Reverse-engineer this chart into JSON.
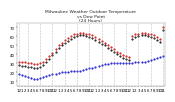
{
  "title": "Milwaukee Weather Outdoor Temperature\nvs Dew Point\n(24 Hours)",
  "title_fontsize": 3.2,
  "background_color": "#ffffff",
  "grid_color": "#888888",
  "hours": [
    0,
    1,
    2,
    3,
    4,
    5,
    6,
    7,
    8,
    9,
    10,
    11,
    12,
    13,
    14,
    15,
    16,
    17,
    18,
    19,
    20,
    21,
    22,
    23,
    24,
    25,
    26,
    27,
    28,
    29,
    30,
    31,
    32,
    33,
    34,
    35,
    36,
    37,
    38,
    39,
    40,
    41,
    42,
    43,
    44,
    45,
    46,
    47
  ],
  "temp_values": [
    32,
    31,
    31,
    30,
    30,
    29,
    29,
    30,
    32,
    35,
    38,
    42,
    46,
    50,
    53,
    56,
    58,
    60,
    62,
    63,
    64,
    64,
    63,
    62,
    61,
    59,
    57,
    55,
    53,
    50,
    48,
    46,
    43,
    41,
    39,
    38,
    37,
    60,
    62,
    63,
    64,
    64,
    63,
    62,
    61,
    59,
    57,
    70
  ],
  "dewpoint_values": [
    18,
    17,
    16,
    15,
    14,
    13,
    13,
    14,
    15,
    16,
    17,
    18,
    18,
    19,
    20,
    20,
    20,
    21,
    21,
    22,
    22,
    23,
    24,
    25,
    25,
    26,
    27,
    28,
    29,
    29,
    30,
    30,
    30,
    30,
    30,
    30,
    30,
    30,
    31,
    31,
    32,
    32,
    33,
    34,
    35,
    36,
    37,
    38
  ],
  "feels_values": [
    28,
    27,
    27,
    26,
    26,
    25,
    25,
    26,
    28,
    31,
    35,
    39,
    43,
    47,
    50,
    53,
    55,
    57,
    59,
    60,
    61,
    61,
    60,
    59,
    58,
    56,
    54,
    52,
    50,
    47,
    45,
    43,
    40,
    38,
    36,
    35,
    34,
    57,
    59,
    60,
    61,
    61,
    60,
    59,
    58,
    56,
    54,
    67
  ],
  "temp_color": "#cc0000",
  "dewpoint_color": "#0000cc",
  "feels_color": "#000000",
  "ylim_min": 5,
  "ylim_max": 75,
  "tick_fontsize": 2.8,
  "marker_size": 1.0,
  "grid_line_positions": [
    0,
    3,
    7,
    11,
    15,
    19,
    23,
    27,
    31,
    35,
    39,
    43,
    47
  ],
  "yticks": [
    10,
    20,
    30,
    40,
    50,
    60,
    70
  ],
  "x_tick_positions": [
    0,
    1,
    2,
    3,
    4,
    5,
    6,
    7,
    8,
    9,
    10,
    11,
    12,
    13,
    14,
    15,
    16,
    17,
    18,
    19,
    20,
    21,
    22,
    23,
    24,
    25,
    26,
    27,
    28,
    29,
    30,
    31,
    32,
    33,
    34,
    35,
    36,
    37,
    38,
    39,
    40,
    41,
    42,
    43,
    44,
    45,
    46,
    47
  ],
  "x_tick_labels": [
    "12",
    "1",
    "2",
    "3",
    "4",
    "5",
    "6",
    "7",
    "8",
    "9",
    "10",
    "11",
    "12",
    "1",
    "2",
    "3",
    "4",
    "5",
    "6",
    "7",
    "8",
    "9",
    "10",
    "11",
    "12",
    "1",
    "2",
    "3",
    "4",
    "5",
    "6",
    "7",
    "8",
    "9",
    "10",
    "11",
    "12",
    "1",
    "2",
    "3",
    "4",
    "5",
    "6",
    "7",
    "8",
    "9",
    "10",
    "11"
  ]
}
